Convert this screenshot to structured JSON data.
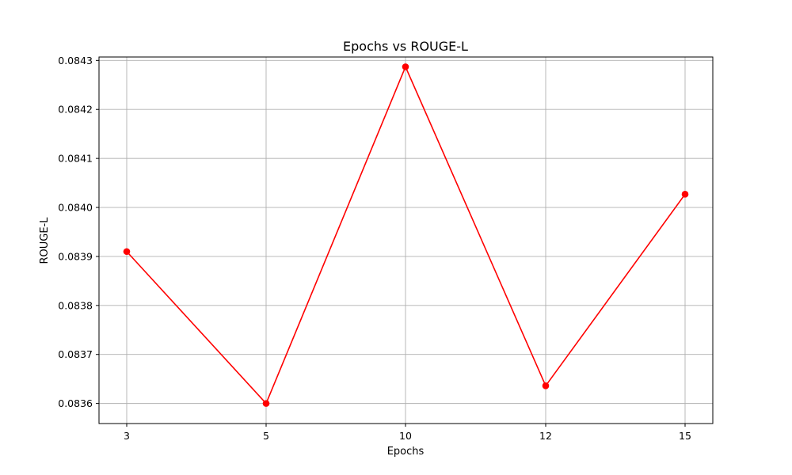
{
  "chart_data": {
    "type": "line",
    "title": "Epochs vs ROUGE-L",
    "xlabel": "Epochs",
    "ylabel": "ROUGE-L",
    "categories": [
      "3",
      "5",
      "10",
      "12",
      "15"
    ],
    "series": [
      {
        "values": [
          0.08391,
          0.0836,
          0.084287,
          0.083636,
          0.084027
        ],
        "color": "#ff0000",
        "marker": "circle"
      }
    ],
    "ylim": [
      0.083559,
      0.084307
    ],
    "yticks": [
      0.0836,
      0.0837,
      0.0838,
      0.0839,
      0.084,
      0.0841,
      0.0842,
      0.0843
    ],
    "ytick_labels": [
      "0.0836",
      "0.0837",
      "0.0838",
      "0.0839",
      "0.0840",
      "0.0841",
      "0.0842",
      "0.0843"
    ],
    "grid": true
  }
}
